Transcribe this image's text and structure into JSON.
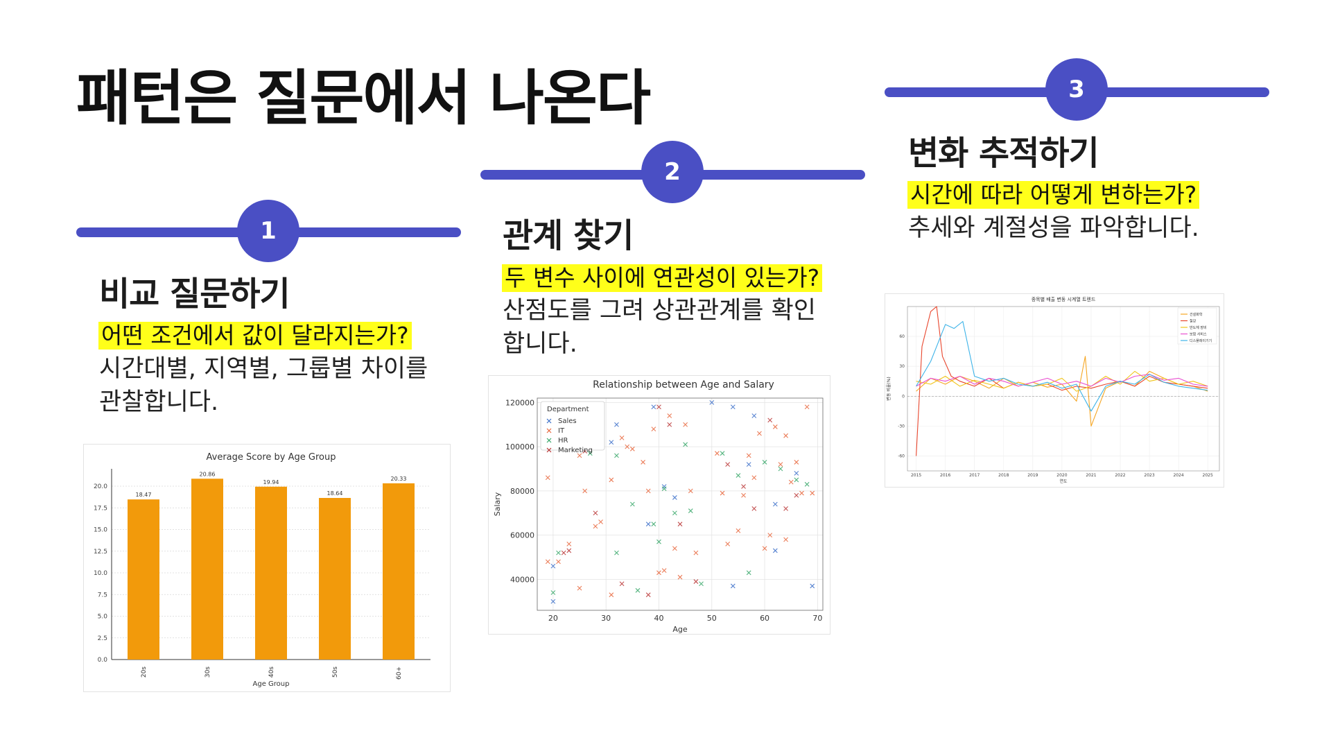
{
  "page": {
    "title": "패턴은 질문에서 나온다"
  },
  "steps": [
    {
      "number": "1",
      "heading": "비교 질문하기",
      "question": "어떤 조건에서 값이 달라지는가?",
      "description": "시간대별, 지역별, 그룹별 차이를\n관찰합니다."
    },
    {
      "number": "2",
      "heading": "관계 찾기",
      "question": "두 변수 사이에 연관성이 있는가?",
      "description": "산점도를 그려 상관관계를 확인\n합니다."
    },
    {
      "number": "3",
      "heading": "변화 추적하기",
      "question": "시간에 따라 어떻게 변하는가?",
      "description": "추세와 계절성을 파악합니다."
    }
  ],
  "colors": {
    "accent": "#4a4fc4",
    "highlight": "#ffff1a",
    "bar": "#f29a0b"
  },
  "chart_data": [
    {
      "type": "bar",
      "title": "Average Score by Age Group",
      "xlabel": "Age Group",
      "ylabel": "",
      "categories": [
        "20s",
        "30s",
        "40s",
        "50s",
        "60+"
      ],
      "values": [
        18.47,
        20.86,
        19.94,
        18.64,
        20.33
      ],
      "value_labels": [
        "18.47",
        "20.86",
        "19.94",
        "18.64",
        "20.33"
      ],
      "ylim": [
        0,
        22
      ],
      "yticks": [
        0.0,
        2.5,
        5.0,
        7.5,
        10.0,
        12.5,
        15.0,
        17.5,
        20.0
      ],
      "ytick_labels": [
        "0.0",
        "2.5",
        "5.0",
        "7.5",
        "10.0",
        "12.5",
        "15.0",
        "17.5",
        "20.0"
      ],
      "grid": true
    },
    {
      "type": "scatter",
      "title": "Relationship between Age and Salary",
      "xlabel": "Age",
      "ylabel": "Salary",
      "xlim": [
        17,
        71
      ],
      "ylim": [
        26000,
        122000
      ],
      "xticks": [
        20,
        30,
        40,
        50,
        60,
        70
      ],
      "xtick_labels": [
        "20",
        "30",
        "40",
        "50",
        "60",
        "70"
      ],
      "yticks": [
        40000,
        60000,
        80000,
        100000,
        120000
      ],
      "ytick_labels": [
        "40000",
        "60000",
        "80000",
        "100000",
        "120000"
      ],
      "legend": {
        "title": "Department",
        "position": "top-left"
      },
      "marker": "x",
      "grid": true,
      "series": [
        {
          "name": "Sales",
          "color": "#3b6fc9",
          "points": [
            [
              20,
              30000
            ],
            [
              20,
              46000
            ],
            [
              31,
              102000
            ],
            [
              32,
              110000
            ],
            [
              38,
              65000
            ],
            [
              39,
              118000
            ],
            [
              41,
              82000
            ],
            [
              43,
              77000
            ],
            [
              50,
              120000
            ],
            [
              54,
              37000
            ],
            [
              54,
              118000
            ],
            [
              57,
              92000
            ],
            [
              58,
              114000
            ],
            [
              62,
              53000
            ],
            [
              62,
              74000
            ],
            [
              66,
              88000
            ],
            [
              69,
              37000
            ]
          ]
        },
        {
          "name": "IT",
          "color": "#e8663c",
          "points": [
            [
              19,
              48000
            ],
            [
              19,
              86000
            ],
            [
              21,
              48000
            ],
            [
              23,
              56000
            ],
            [
              25,
              36000
            ],
            [
              25,
              96000
            ],
            [
              26,
              80000
            ],
            [
              28,
              64000
            ],
            [
              29,
              66000
            ],
            [
              31,
              33000
            ],
            [
              31,
              85000
            ],
            [
              33,
              104000
            ],
            [
              34,
              100000
            ],
            [
              35,
              99000
            ],
            [
              37,
              93000
            ],
            [
              38,
              80000
            ],
            [
              39,
              108000
            ],
            [
              40,
              43000
            ],
            [
              41,
              44000
            ],
            [
              42,
              114000
            ],
            [
              43,
              54000
            ],
            [
              44,
              41000
            ],
            [
              45,
              110000
            ],
            [
              46,
              80000
            ],
            [
              47,
              52000
            ],
            [
              51,
              97000
            ],
            [
              52,
              79000
            ],
            [
              53,
              56000
            ],
            [
              55,
              62000
            ],
            [
              56,
              78000
            ],
            [
              57,
              96000
            ],
            [
              58,
              86000
            ],
            [
              59,
              106000
            ],
            [
              60,
              54000
            ],
            [
              61,
              60000
            ],
            [
              62,
              109000
            ],
            [
              63,
              92000
            ],
            [
              64,
              105000
            ],
            [
              64,
              58000
            ],
            [
              65,
              84000
            ],
            [
              66,
              93000
            ],
            [
              67,
              79000
            ],
            [
              68,
              118000
            ],
            [
              69,
              79000
            ]
          ]
        },
        {
          "name": "HR",
          "color": "#3aa86b",
          "points": [
            [
              20,
              34000
            ],
            [
              21,
              52000
            ],
            [
              27,
              97000
            ],
            [
              32,
              52000
            ],
            [
              32,
              96000
            ],
            [
              35,
              74000
            ],
            [
              36,
              35000
            ],
            [
              39,
              65000
            ],
            [
              40,
              57000
            ],
            [
              41,
              81000
            ],
            [
              43,
              70000
            ],
            [
              45,
              101000
            ],
            [
              46,
              71000
            ],
            [
              48,
              38000
            ],
            [
              52,
              97000
            ],
            [
              55,
              87000
            ],
            [
              57,
              43000
            ],
            [
              60,
              93000
            ],
            [
              63,
              90000
            ],
            [
              66,
              85000
            ],
            [
              68,
              83000
            ]
          ]
        },
        {
          "name": "Marketing",
          "color": "#b83232",
          "points": [
            [
              22,
              52000
            ],
            [
              23,
              53000
            ],
            [
              26,
              98000
            ],
            [
              28,
              70000
            ],
            [
              33,
              38000
            ],
            [
              38,
              33000
            ],
            [
              40,
              118000
            ],
            [
              42,
              110000
            ],
            [
              44,
              65000
            ],
            [
              47,
              39000
            ],
            [
              53,
              92000
            ],
            [
              56,
              82000
            ],
            [
              58,
              72000
            ],
            [
              61,
              112000
            ],
            [
              64,
              72000
            ],
            [
              66,
              78000
            ]
          ]
        }
      ]
    },
    {
      "type": "line",
      "title": "종목별 배출 변동 시계열 트렌드",
      "xlabel": "연도",
      "ylabel": "변동 비율(%)",
      "xlim": [
        2014.7,
        2025.4
      ],
      "ylim": [
        -75,
        90
      ],
      "xticks": [
        2015,
        2016,
        2017,
        2018,
        2019,
        2020,
        2021,
        2022,
        2023,
        2024,
        2025
      ],
      "xtick_labels": [
        "2015",
        "2016",
        "2017",
        "2018",
        "2019",
        "2020",
        "2021",
        "2022",
        "2023",
        "2024",
        "2025"
      ],
      "yticks": [
        -60,
        -30,
        0,
        30,
        60
      ],
      "ytick_labels": [
        "-60",
        "-30",
        "0",
        "30",
        "60"
      ],
      "legend": {
        "position": "top-right"
      },
      "grid": true,
      "series": [
        {
          "name": "건설화학",
          "color": "#f5a623",
          "x": [
            2015,
            2015.5,
            2016,
            2016.5,
            2017,
            2017.5,
            2018,
            2018.5,
            2019,
            2019.5,
            2020,
            2020.5,
            2020.8,
            2021,
            2021.5,
            2022,
            2022.5,
            2023,
            2023.5,
            2024,
            2024.5,
            2025
          ],
          "y": [
            5,
            18,
            12,
            20,
            15,
            8,
            18,
            10,
            14,
            9,
            12,
            -5,
            40,
            -30,
            8,
            15,
            10,
            25,
            18,
            12,
            10,
            5
          ]
        },
        {
          "name": "철강",
          "color": "#e8452c",
          "x": [
            2015,
            2015.2,
            2015.5,
            2015.7,
            2015.9,
            2016.2,
            2016.5,
            2017,
            2017.5,
            2018,
            2018.5,
            2019,
            2019.5,
            2020,
            2020.5,
            2021,
            2021.5,
            2022,
            2022.5,
            2023,
            2023.5,
            2024,
            2024.5,
            2025
          ],
          "y": [
            -60,
            50,
            85,
            90,
            40,
            20,
            15,
            10,
            18,
            8,
            14,
            10,
            12,
            6,
            10,
            8,
            12,
            15,
            10,
            20,
            14,
            12,
            10,
            8
          ]
        },
        {
          "name": "반도체 장비",
          "color": "#f0c419",
          "x": [
            2015,
            2015.5,
            2016,
            2016.5,
            2017,
            2017.5,
            2018,
            2018.5,
            2019,
            2019.5,
            2020,
            2020.5,
            2021,
            2021.5,
            2022,
            2022.5,
            2023,
            2023.5,
            2024,
            2024.5,
            2025
          ],
          "y": [
            15,
            12,
            20,
            10,
            16,
            12,
            8,
            14,
            10,
            12,
            18,
            5,
            10,
            20,
            12,
            25,
            15,
            18,
            12,
            15,
            10
          ]
        },
        {
          "name": "보험 서비스",
          "color": "#e94fd0",
          "x": [
            2015,
            2015.5,
            2016,
            2016.5,
            2017,
            2017.5,
            2018,
            2018.5,
            2019,
            2019.5,
            2020,
            2020.5,
            2021,
            2021.5,
            2022,
            2022.5,
            2023,
            2023.5,
            2024,
            2024.5,
            2025
          ],
          "y": [
            10,
            18,
            15,
            20,
            12,
            18,
            15,
            10,
            14,
            18,
            12,
            15,
            10,
            18,
            14,
            20,
            22,
            16,
            18,
            12,
            10
          ]
        },
        {
          "name": "디스플레이기기",
          "color": "#3db3e8",
          "x": [
            2015,
            2015.5,
            2016,
            2016.3,
            2016.6,
            2017,
            2017.5,
            2018,
            2018.5,
            2019,
            2019.5,
            2020,
            2020.5,
            2021,
            2021.5,
            2022,
            2022.5,
            2023,
            2023.5,
            2024,
            2024.5,
            2025
          ],
          "y": [
            10,
            35,
            72,
            68,
            75,
            20,
            15,
            18,
            12,
            10,
            14,
            8,
            12,
            -15,
            10,
            15,
            12,
            22,
            14,
            10,
            8,
            6
          ]
        }
      ]
    }
  ]
}
